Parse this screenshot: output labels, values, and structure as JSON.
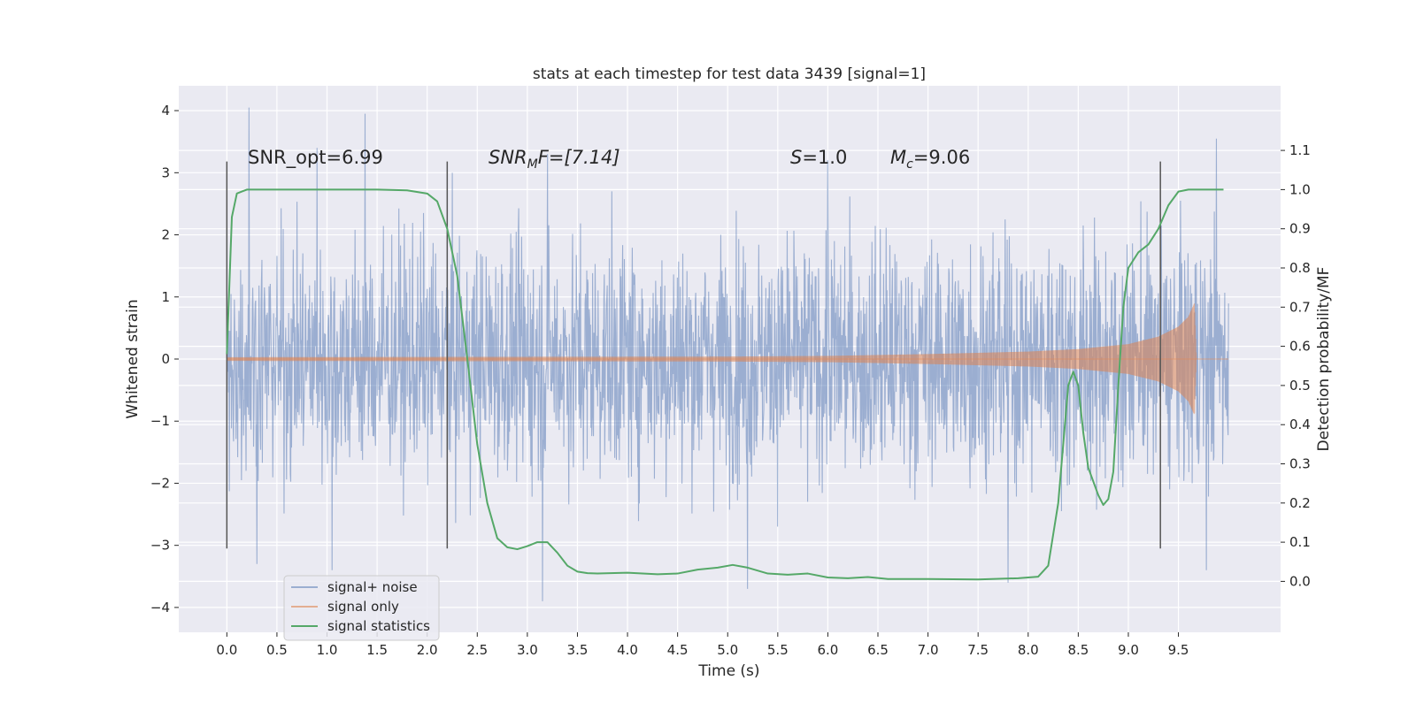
{
  "chart_data": {
    "type": "line",
    "title": "stats at each timestep for test data 3439 [signal=1]",
    "xlabel": "Time (s)",
    "ylabel": "Whitened strain",
    "ylabel_right": "Detection probability/MF",
    "xlim": [
      -0.48,
      10.52
    ],
    "ylim": [
      -4.4,
      4.4
    ],
    "ylim_right": [
      -0.13,
      1.265
    ],
    "x_ticks": [
      0.0,
      0.5,
      1.0,
      1.5,
      2.0,
      2.5,
      3.0,
      3.5,
      4.0,
      4.5,
      5.0,
      5.5,
      6.0,
      6.5,
      7.0,
      7.5,
      8.0,
      8.5,
      9.0,
      9.5
    ],
    "x_tick_labels": [
      "0.0",
      "0.5",
      "1.0",
      "1.5",
      "2.0",
      "2.5",
      "3.0",
      "3.5",
      "4.0",
      "4.5",
      "5.0",
      "5.5",
      "6.0",
      "6.5",
      "7.0",
      "7.5",
      "8.0",
      "8.5",
      "9.0",
      "9.5"
    ],
    "y_ticks": [
      -4,
      -3,
      -2,
      -1,
      0,
      1,
      2,
      3,
      4
    ],
    "y_tick_labels": [
      "−4",
      "−3",
      "−2",
      "−1",
      "0",
      "1",
      "2",
      "3",
      "4"
    ],
    "y_ticks_right": [
      0.0,
      0.1,
      0.2,
      0.3,
      0.4,
      0.5,
      0.6,
      0.7,
      0.8,
      0.9,
      1.0,
      1.1
    ],
    "y_tick_labels_right": [
      "0.0",
      "0.1",
      "0.2",
      "0.3",
      "0.4",
      "0.5",
      "0.6",
      "0.7",
      "0.8",
      "0.9",
      "1.0",
      "1.1"
    ],
    "grid": true,
    "legend_position": "lower-left",
    "colors": {
      "signal_noise": "#4c72b0",
      "signal_only": "#dd8452",
      "statistics": "#55a868",
      "background": "#eaeaf2",
      "vlines": "#555555"
    },
    "series": [
      {
        "name": "signal+ noise",
        "axis": "left",
        "x_range": [
          0.0,
          10.0
        ],
        "envelope_upper_typical": 2.2,
        "envelope_lower_typical": -2.2,
        "max_value": 4.05,
        "min_value": -3.9,
        "peaks": [
          [
            0.22,
            4.05
          ],
          [
            1.38,
            3.95
          ],
          [
            9.88,
            3.55
          ],
          [
            0.9,
            3.4
          ],
          [
            3.2,
            3.3
          ],
          [
            6.0,
            3.2
          ],
          [
            3.15,
            -3.9
          ],
          [
            5.2,
            -3.7
          ],
          [
            7.8,
            -3.6
          ],
          [
            0.3,
            -3.3
          ],
          [
            9.78,
            -3.4
          ],
          [
            1.05,
            -3.4
          ]
        ]
      },
      {
        "name": "signal only",
        "axis": "left",
        "x_range": [
          0.0,
          9.68
        ],
        "amplitude_profile": [
          [
            0.0,
            0.03
          ],
          [
            5.0,
            0.04
          ],
          [
            6.0,
            0.05
          ],
          [
            7.0,
            0.08
          ],
          [
            8.0,
            0.12
          ],
          [
            8.5,
            0.16
          ],
          [
            9.0,
            0.24
          ],
          [
            9.3,
            0.36
          ],
          [
            9.5,
            0.52
          ],
          [
            9.6,
            0.68
          ],
          [
            9.66,
            0.9
          ],
          [
            9.68,
            0.0
          ]
        ]
      },
      {
        "name": "signal statistics",
        "axis": "right",
        "x": [
          0.0,
          0.05,
          0.1,
          0.15,
          0.2,
          0.3,
          0.5,
          1.0,
          1.5,
          1.8,
          2.0,
          2.1,
          2.2,
          2.3,
          2.4,
          2.5,
          2.6,
          2.7,
          2.8,
          2.9,
          3.0,
          3.1,
          3.2,
          3.3,
          3.4,
          3.5,
          3.6,
          3.7,
          4.0,
          4.3,
          4.5,
          4.7,
          4.9,
          5.05,
          5.2,
          5.4,
          5.6,
          5.8,
          6.0,
          6.2,
          6.4,
          6.6,
          7.0,
          7.5,
          7.9,
          8.1,
          8.2,
          8.3,
          8.4,
          8.45,
          8.5,
          8.55,
          8.6,
          8.7,
          8.75,
          8.8,
          8.85,
          8.9,
          8.95,
          9.0,
          9.1,
          9.2,
          9.3,
          9.4,
          9.5,
          9.6,
          9.8,
          9.95
        ],
        "y": [
          0.58,
          0.93,
          0.99,
          0.995,
          1.0,
          1.0,
          1.0,
          1.0,
          1.0,
          0.998,
          0.99,
          0.97,
          0.9,
          0.78,
          0.57,
          0.35,
          0.2,
          0.11,
          0.087,
          0.082,
          0.09,
          0.1,
          0.1,
          0.073,
          0.04,
          0.025,
          0.021,
          0.02,
          0.022,
          0.018,
          0.02,
          0.03,
          0.035,
          0.042,
          0.035,
          0.02,
          0.017,
          0.02,
          0.01,
          0.008,
          0.011,
          0.006,
          0.006,
          0.005,
          0.008,
          0.012,
          0.04,
          0.2,
          0.5,
          0.535,
          0.5,
          0.38,
          0.29,
          0.22,
          0.195,
          0.21,
          0.28,
          0.5,
          0.7,
          0.8,
          0.84,
          0.86,
          0.9,
          0.96,
          0.995,
          1.0,
          1.0,
          1.0
        ]
      }
    ],
    "vertical_lines": [
      {
        "x": 0.0,
        "y_range": [
          -3.05,
          3.18
        ]
      },
      {
        "x": 2.2,
        "y_range": [
          -3.05,
          3.18
        ]
      },
      {
        "x": 9.32,
        "y_range": [
          -3.05,
          3.18
        ]
      }
    ],
    "annotations": {
      "snr_opt": "SNR_opt=6.99",
      "snr_mf_main": "SNR",
      "snr_mf_sub": "M",
      "snr_mf_rest": "F=[7.14]",
      "s_label": "S",
      "s_value": "=1.0",
      "mc_main": "M",
      "mc_sub": "c",
      "mc_value": "=9.06"
    }
  }
}
